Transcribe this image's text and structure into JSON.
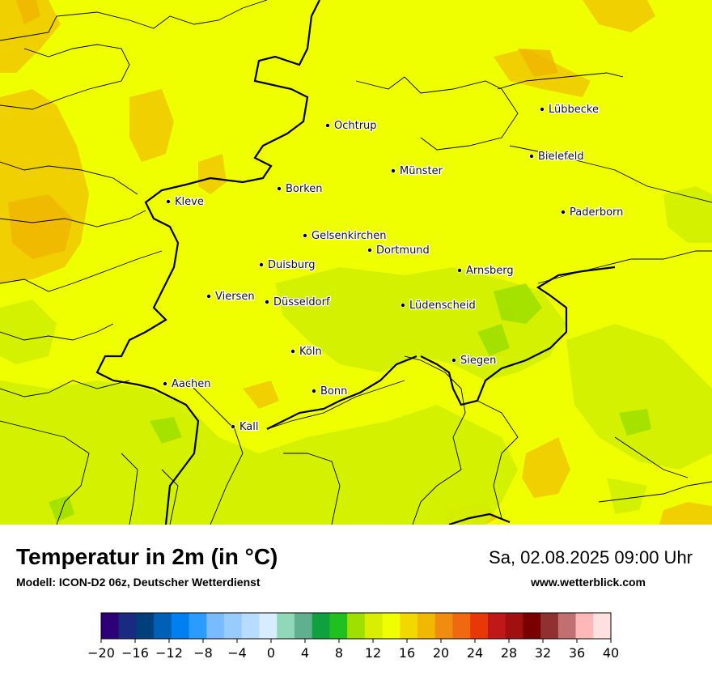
{
  "map": {
    "base_color": "#f0ff00",
    "cities": [
      {
        "name": "Ochtrup"
      },
      {
        "name": "Lübbecke"
      },
      {
        "name": "Bielefeld"
      },
      {
        "name": "Münster"
      },
      {
        "name": "Borken"
      },
      {
        "name": "Kleve"
      },
      {
        "name": "Paderborn"
      },
      {
        "name": "Gelsenkirchen"
      },
      {
        "name": "Dortmund"
      },
      {
        "name": "Duisburg"
      },
      {
        "name": "Arnsberg"
      },
      {
        "name": "Viersen"
      },
      {
        "name": "Düsseldorf"
      },
      {
        "name": "Lüdenscheid"
      },
      {
        "name": "Köln"
      },
      {
        "name": "Siegen"
      },
      {
        "name": "Aachen"
      },
      {
        "name": "Bonn"
      },
      {
        "name": "Kall"
      }
    ]
  },
  "header": {
    "title": "Temperatur in 2m (in °C)",
    "subtitle": "Modell: ICON-D2 06z, Deutscher Wetterdienst",
    "datetime": "Sa, 02.08.2025 09:00 Uhr",
    "website": "www.wetterblick.com"
  },
  "legend": {
    "ticks": [
      "−20",
      "−16",
      "−12",
      "−8",
      "−4",
      "0",
      "4",
      "8",
      "12",
      "16",
      "20",
      "24",
      "28",
      "32",
      "36",
      "40"
    ],
    "colors": [
      "#2d0078",
      "#1a2a80",
      "#00407a",
      "#0060b8",
      "#0080f0",
      "#2a9cff",
      "#78bcff",
      "#98ccff",
      "#b8dcff",
      "#d8ecff",
      "#90d8b8",
      "#60b090",
      "#10a040",
      "#20c020",
      "#a0e000",
      "#d8f000",
      "#f0ff00",
      "#f0d800",
      "#f0b800",
      "#f08c10",
      "#f06810",
      "#e83808",
      "#c01818",
      "#a01010",
      "#780000",
      "#903030",
      "#c07070",
      "#ffb8b8",
      "#ffe0e0"
    ]
  }
}
